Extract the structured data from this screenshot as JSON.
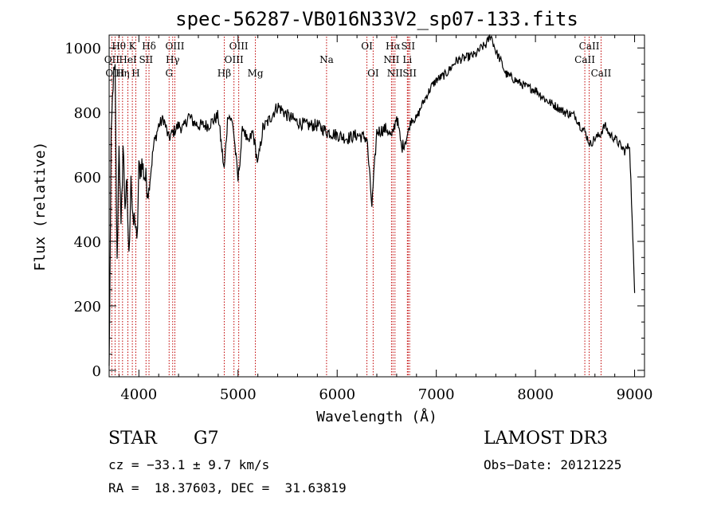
{
  "chart_data": {
    "type": "line",
    "title": "spec-56287-VB016N33V2_sp07-133.fits",
    "xlabel": "Wavelength (Å)",
    "ylabel": "Flux (relative)",
    "xlim": [
      3700,
      9100
    ],
    "ylim": [
      -20,
      1040
    ],
    "xticks": [
      4000,
      5000,
      6000,
      7000,
      8000,
      9000
    ],
    "yticks": [
      0,
      200,
      400,
      600,
      800,
      1000
    ],
    "grid": false,
    "series": [
      {
        "x": [
          3700,
          3720,
          3740,
          3760,
          3780,
          3800,
          3820,
          3840,
          3860,
          3880,
          3900,
          3920,
          3940,
          3960,
          3980,
          4000,
          4030,
          4060,
          4100,
          4150,
          4200,
          4250,
          4300,
          4350,
          4400,
          4450,
          4500,
          4550,
          4600,
          4700,
          4800,
          4860,
          4900,
          4950,
          5000,
          5050,
          5100,
          5150,
          5200,
          5250,
          5300,
          5400,
          5500,
          5600,
          5700,
          5800,
          5900,
          6000,
          6100,
          6200,
          6300,
          6350,
          6400,
          6500,
          6550,
          6600,
          6650,
          6700,
          6750,
          6800,
          6850,
          6900,
          6950,
          7000,
          7100,
          7200,
          7300,
          7400,
          7450,
          7500,
          7550,
          7600,
          7650,
          7700,
          7800,
          7900,
          8000,
          8100,
          8200,
          8300,
          8400,
          8450,
          8500,
          8550,
          8600,
          8650,
          8700,
          8750,
          8800,
          8850,
          8900,
          8950,
          9000
        ],
        "y": [
          0,
          700,
          900,
          920,
          320,
          720,
          420,
          700,
          520,
          560,
          340,
          620,
          440,
          480,
          380,
          620,
          640,
          600,
          560,
          700,
          760,
          780,
          720,
          740,
          760,
          750,
          790,
          770,
          760,
          760,
          790,
          620,
          800,
          760,
          590,
          760,
          700,
          740,
          640,
          750,
          770,
          820,
          790,
          770,
          760,
          760,
          740,
          730,
          720,
          730,
          720,
          510,
          740,
          750,
          720,
          790,
          690,
          720,
          780,
          780,
          820,
          850,
          880,
          900,
          920,
          960,
          970,
          980,
          1000,
          1010,
          1040,
          990,
          960,
          920,
          900,
          880,
          870,
          840,
          820,
          800,
          790,
          760,
          740,
          700,
          720,
          730,
          760,
          730,
          720,
          700,
          680,
          700,
          240
        ]
      }
    ]
  },
  "lines": [
    {
      "label": "Hθ",
      "x": 3798,
      "row": 1
    },
    {
      "label": "OII",
      "x": 3727,
      "row": 2
    },
    {
      "label": "OIII",
      "x": 3760,
      "row": 3
    },
    {
      "label": "K",
      "x": 3934,
      "row": 1
    },
    {
      "label": "HeI",
      "x": 3889,
      "row": 2
    },
    {
      "label": "Hη",
      "x": 3835,
      "row": 3
    },
    {
      "label": "H",
      "x": 3969,
      "row": 3
    },
    {
      "label": "Hδ",
      "x": 4102,
      "row": 1
    },
    {
      "label": "SII",
      "x": 4072,
      "row": 2
    },
    {
      "label": "OIII",
      "x": 4363,
      "row": 1
    },
    {
      "label": "Hγ",
      "x": 4341,
      "row": 2
    },
    {
      "label": "G",
      "x": 4305,
      "row": 3
    },
    {
      "label": "Hβ",
      "x": 4861,
      "row": 3
    },
    {
      "label": "OIII",
      "x": 5007,
      "row": 1
    },
    {
      "label": "OIII",
      "x": 4959,
      "row": 2
    },
    {
      "label": "Mg",
      "x": 5175,
      "row": 3
    },
    {
      "label": "Na",
      "x": 5893,
      "row": 2
    },
    {
      "label": "OI",
      "x": 6300,
      "row": 1
    },
    {
      "label": "OI",
      "x": 6363,
      "row": 3
    },
    {
      "label": "Hα",
      "x": 6563,
      "row": 1
    },
    {
      "label": "SII",
      "x": 6716,
      "row": 1
    },
    {
      "label": "NII",
      "x": 6548,
      "row": 2
    },
    {
      "label": "Li",
      "x": 6708,
      "row": 2
    },
    {
      "label": "NII",
      "x": 6583,
      "row": 3
    },
    {
      "label": "SII",
      "x": 6731,
      "row": 3
    },
    {
      "label": "CaII",
      "x": 8542,
      "row": 1
    },
    {
      "label": "CaII",
      "x": 8498,
      "row": 2
    },
    {
      "label": "CaII",
      "x": 8662,
      "row": 3
    }
  ],
  "footer": {
    "object_class": "STAR",
    "subclass": "G7",
    "survey": "LAMOST DR3",
    "cz": "cz = −33.1 ± 9.7 km/s",
    "obs_date": "Obs−Date: 20121225",
    "coords": "RA =  18.37603, DEC =  31.63819"
  }
}
